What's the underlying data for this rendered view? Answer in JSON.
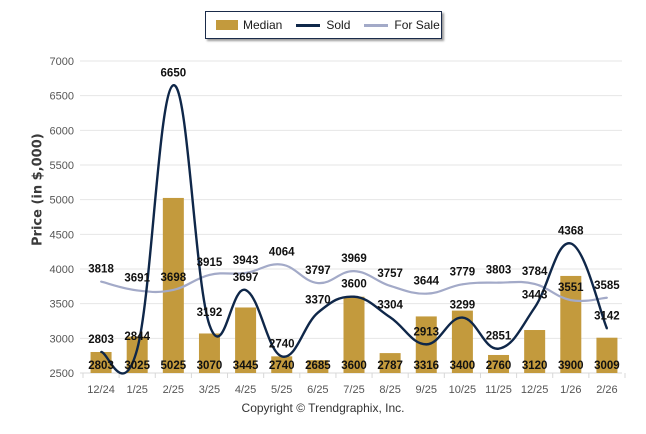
{
  "chart_data": {
    "type": "bar",
    "title": "",
    "xlabel": "",
    "ylabel": "Price (in $,000)",
    "ylim": [
      2500,
      7000
    ],
    "yticks": [
      2500,
      3000,
      3500,
      4000,
      4500,
      5000,
      5500,
      6000,
      6500,
      7000
    ],
    "grid": true,
    "legend_position": "top-center",
    "categories": [
      "12/24",
      "1/25",
      "2/25",
      "3/25",
      "4/25",
      "5/25",
      "6/25",
      "7/25",
      "8/25",
      "9/25",
      "10/25",
      "11/25",
      "12/25",
      "1/26",
      "2/26"
    ],
    "series": [
      {
        "name": "Median",
        "kind": "bar",
        "color": "#c39a3d",
        "values": [
          2803,
          3025,
          5025,
          3070,
          3445,
          2740,
          2685,
          3600,
          2787,
          3316,
          3400,
          2760,
          3120,
          3900,
          3009
        ]
      },
      {
        "name": "Sold",
        "kind": "line",
        "color": "#0f2749",
        "values": [
          2803,
          2844,
          6650,
          3192,
          3697,
          2740,
          3370,
          3600,
          3304,
          2913,
          3299,
          2851,
          3443,
          4368,
          3142
        ]
      },
      {
        "name": "For Sale",
        "kind": "line",
        "color": "#a3aac8",
        "values": [
          3818,
          3691,
          3698,
          3915,
          3943,
          4064,
          3797,
          3969,
          3757,
          3644,
          3779,
          3803,
          3784,
          3551,
          3585
        ]
      }
    ]
  },
  "legend": {
    "items": [
      {
        "label": "Median",
        "color": "#c39a3d",
        "shape": "bar"
      },
      {
        "label": "Sold",
        "color": "#0f2749",
        "shape": "line"
      },
      {
        "label": "For Sale",
        "color": "#a3aac8",
        "shape": "line"
      }
    ]
  },
  "footer": {
    "copyright": "Copyright © Trendgraphix, Inc."
  }
}
